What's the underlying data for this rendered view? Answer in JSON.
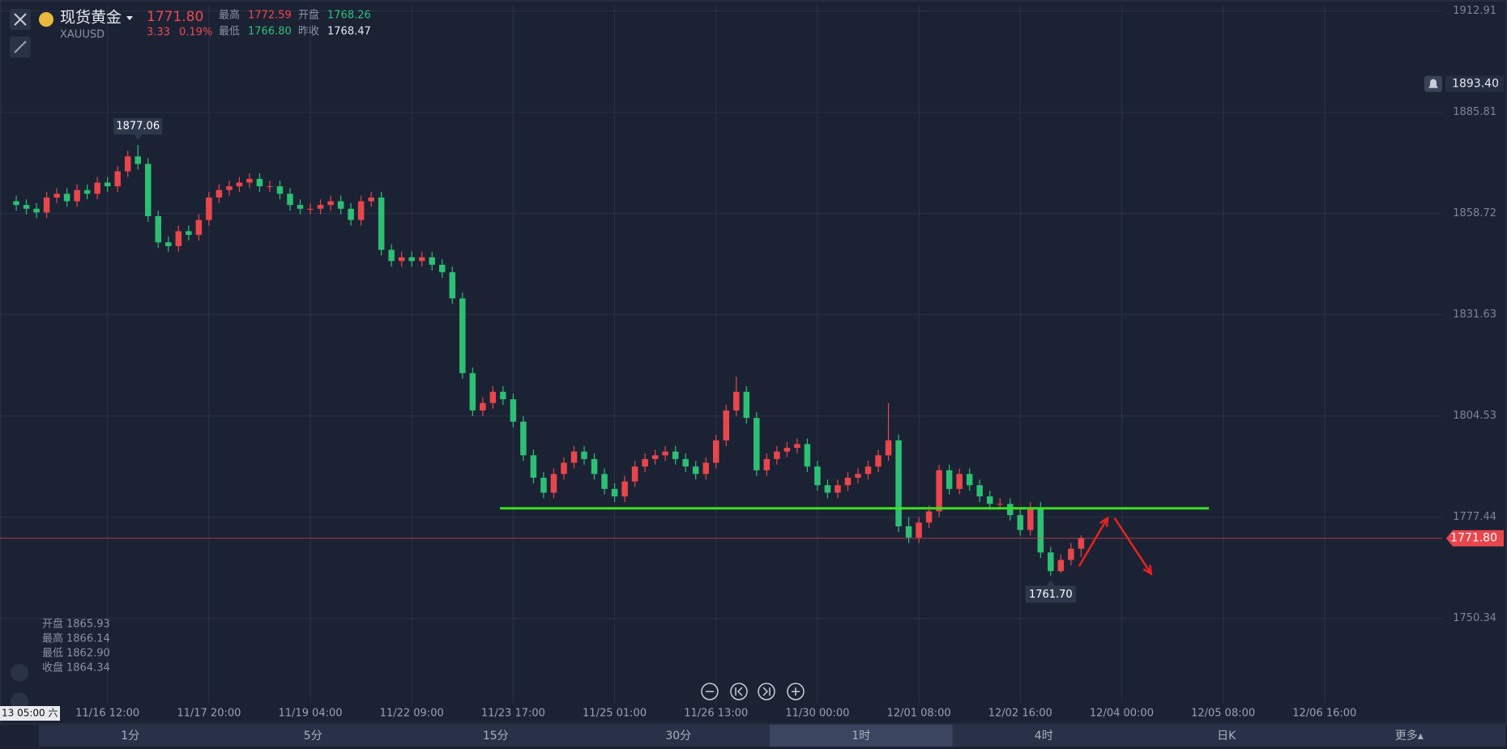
{
  "header": {
    "name": "现货黄金",
    "symbol": "XAUUSD",
    "price": "1771.80",
    "change": "3.33",
    "change_pct": "0.19%",
    "stats": [
      {
        "label": "最高",
        "value": "1772.59"
      },
      {
        "label": "开盘",
        "value": "1768.26"
      },
      {
        "label": "最低",
        "value": "1766.80"
      },
      {
        "label": "昨收",
        "value": "1768.47"
      }
    ]
  },
  "ohlc_info": [
    {
      "label": "开盘",
      "value": "1865.93"
    },
    {
      "label": "最高",
      "value": "1866.14"
    },
    {
      "label": "最低",
      "value": "1862.90"
    },
    {
      "label": "收盘",
      "value": "1864.34"
    }
  ],
  "crosshair_label": "13 05:00 六",
  "timeframes": {
    "items": [
      "1分",
      "5分",
      "15分",
      "30分",
      "1时",
      "4时",
      "日K",
      "更多▴"
    ],
    "selected": 4
  },
  "chart_data": {
    "type": "candlestick",
    "up_color": "#e9464c",
    "down_color": "#2dbf74",
    "grid": true,
    "xlim": [
      -1.6,
      140.6
    ],
    "ylim": [
      1727.74,
      1914.57
    ],
    "yticks": [
      1750.34,
      1777.44,
      1804.53,
      1831.63,
      1858.72,
      1885.81,
      1912.91
    ],
    "xticks": [
      {
        "value": 9,
        "label": "11/16 12:00"
      },
      {
        "value": 19,
        "label": "11/17 20:00"
      },
      {
        "value": 29,
        "label": "11/19 04:00"
      },
      {
        "value": 39,
        "label": "11/22 09:00"
      },
      {
        "value": 49,
        "label": "11/23 17:00"
      },
      {
        "value": 59,
        "label": "11/25 01:00"
      },
      {
        "value": 69,
        "label": "11/26 13:00"
      },
      {
        "value": 79,
        "label": "11/30 00:00"
      },
      {
        "value": 89,
        "label": "12/01 08:00"
      },
      {
        "value": 99,
        "label": "12/02 16:00"
      },
      {
        "value": 109,
        "label": "12/04 00:00"
      },
      {
        "value": 119,
        "label": "12/05 08:00"
      },
      {
        "value": 129,
        "label": "12/06 16:00"
      }
    ],
    "open": [
      1862,
      1861,
      1860,
      1859,
      1863,
      1864,
      1862,
      1865,
      1864,
      1867,
      1866,
      1870,
      1874,
      1872,
      1858,
      1851,
      1850,
      1854,
      1853,
      1857,
      1863,
      1865,
      1866,
      1867,
      1868,
      1866,
      1866,
      1864,
      1861,
      1860,
      1860,
      1861,
      1862,
      1860,
      1857,
      1862,
      1863,
      1849,
      1846,
      1847,
      1846,
      1847,
      1845,
      1843,
      1836,
      1816,
      1806,
      1808,
      1811,
      1809,
      1803,
      1794,
      1788,
      1784,
      1789,
      1792,
      1795,
      1793,
      1789,
      1785,
      1783,
      1787,
      1791,
      1793,
      1794,
      1795,
      1793,
      1791,
      1789,
      1792,
      1798,
      1806,
      1811,
      1804,
      1790,
      1793,
      1795,
      1796,
      1797,
      1791,
      1786,
      1784,
      1786,
      1788,
      1789,
      1791,
      1794,
      1798,
      1775,
      1772,
      1776,
      1779,
      1790,
      1785,
      1789,
      1786,
      1783,
      1781,
      1781,
      1778,
      1774,
      1780,
      1768,
      1763,
      1766,
      1769
    ],
    "high": [
      1863.5,
      1862.5,
      1861.5,
      1864.5,
      1865.5,
      1865.5,
      1866.5,
      1866.5,
      1868.5,
      1868.5,
      1871.5,
      1875.5,
      1877.06,
      1873.5,
      1859.5,
      1852.5,
      1855.5,
      1855.5,
      1858.5,
      1864.5,
      1866.5,
      1867.5,
      1868.5,
      1869.5,
      1869.5,
      1867.5,
      1867.5,
      1865.5,
      1862.5,
      1861.5,
      1862.5,
      1863.5,
      1863.5,
      1861.5,
      1863.5,
      1864.5,
      1864.5,
      1850.5,
      1848.5,
      1848.5,
      1848.5,
      1848.5,
      1846.5,
      1844.5,
      1837.5,
      1817.5,
      1809.5,
      1812.5,
      1812.5,
      1810.5,
      1804.5,
      1795.5,
      1789.5,
      1790.5,
      1793.5,
      1796.5,
      1796.5,
      1794.5,
      1790.5,
      1786.5,
      1788.5,
      1792.5,
      1794.5,
      1795.5,
      1796.5,
      1796.5,
      1794.5,
      1792.5,
      1793.5,
      1799.5,
      1807.5,
      1815,
      1812.5,
      1805.5,
      1794.5,
      1796.5,
      1797.5,
      1798.5,
      1798.5,
      1792.5,
      1787.5,
      1787.5,
      1789.5,
      1790.5,
      1792.5,
      1795.5,
      1808,
      1799.5,
      1777.5,
      1777.5,
      1780.5,
      1791.5,
      1791.5,
      1790.5,
      1790.5,
      1787.5,
      1784.5,
      1782.5,
      1782.5,
      1779.5,
      1781.5,
      1781.5,
      1769.5,
      1767.5,
      1770.5,
      1772.59
    ],
    "low": [
      1859.5,
      1858.5,
      1857.5,
      1857.5,
      1861.5,
      1860.5,
      1860.5,
      1862.5,
      1862.5,
      1864.5,
      1864.5,
      1868.5,
      1870.5,
      1856.5,
      1849.5,
      1848.5,
      1848.5,
      1851.5,
      1851.5,
      1855.5,
      1861.5,
      1863.5,
      1864.5,
      1865.5,
      1864.5,
      1864.5,
      1862.5,
      1859.5,
      1858.5,
      1858.5,
      1858.5,
      1859.5,
      1858.5,
      1855.5,
      1855.5,
      1860.5,
      1847.5,
      1844.5,
      1844.5,
      1844.5,
      1844.5,
      1843.5,
      1841.5,
      1834.5,
      1814.5,
      1804.5,
      1804.5,
      1806.5,
      1807.5,
      1801.5,
      1792.5,
      1786.5,
      1782.5,
      1782.5,
      1787.5,
      1790.5,
      1791.5,
      1787.5,
      1783.5,
      1781.5,
      1781.5,
      1785.5,
      1789.5,
      1791.5,
      1792.5,
      1791.5,
      1789.5,
      1787.5,
      1787.5,
      1790.5,
      1796.5,
      1804.5,
      1802.5,
      1788.5,
      1788.5,
      1791.5,
      1793.5,
      1794.5,
      1789.5,
      1784.5,
      1782.5,
      1782.5,
      1784.5,
      1786.5,
      1787.5,
      1789.5,
      1792.5,
      1773.5,
      1770.5,
      1770.5,
      1774.5,
      1777.5,
      1783.5,
      1783.5,
      1784.5,
      1781.5,
      1779.5,
      1779.5,
      1776.5,
      1772.5,
      1772.5,
      1766.5,
      1761.7,
      1762.5,
      1764.5,
      1766.8
    ],
    "close": [
      1861,
      1860,
      1859,
      1863,
      1864,
      1862,
      1865,
      1864,
      1867,
      1866,
      1870,
      1874,
      1872,
      1858,
      1851,
      1850,
      1854,
      1853,
      1857,
      1863,
      1865,
      1866,
      1867,
      1868,
      1866,
      1866,
      1864,
      1861,
      1860,
      1860,
      1861,
      1862,
      1860,
      1857,
      1862,
      1863,
      1849,
      1846,
      1847,
      1846,
      1847,
      1845,
      1843,
      1836,
      1816,
      1806,
      1808,
      1811,
      1809,
      1803,
      1794,
      1788,
      1784,
      1789,
      1792,
      1795,
      1793,
      1789,
      1785,
      1783,
      1787,
      1791,
      1793,
      1794,
      1795,
      1793,
      1791,
      1789,
      1792,
      1798,
      1806,
      1811,
      1804,
      1790,
      1793,
      1795,
      1796,
      1797,
      1791,
      1786,
      1784,
      1786,
      1788,
      1789,
      1791,
      1794,
      1798,
      1775,
      1772,
      1776,
      1779,
      1790,
      1785,
      1789,
      1786,
      1783,
      1781,
      1781,
      1778,
      1774,
      1780,
      1768,
      1763,
      1766,
      1769,
      1771.8
    ],
    "high_label": 1877.06,
    "low_label": {
      "value": 1761.7,
      "label": "1761.70"
    },
    "price_line": {
      "value": 1771.8,
      "label": "1771.80",
      "color": "#e9464c"
    },
    "alert_line": {
      "value": 1893.4,
      "label": "1893.40"
    },
    "drawings": [
      {
        "type": "line",
        "color": "#3be11f",
        "x": [
          47.7,
          117.6
        ],
        "y": [
          1779.8,
          1779.8
        ]
      },
      {
        "type": "arrow",
        "color": "#e8221f",
        "x": [
          104.8,
          107.6
        ],
        "y": [
          1764.3,
          1777.2
        ]
      },
      {
        "type": "arrow",
        "color": "#e8221f",
        "x": [
          108.3,
          111.9
        ],
        "y": [
          1777.2,
          1762.3
        ]
      }
    ]
  }
}
